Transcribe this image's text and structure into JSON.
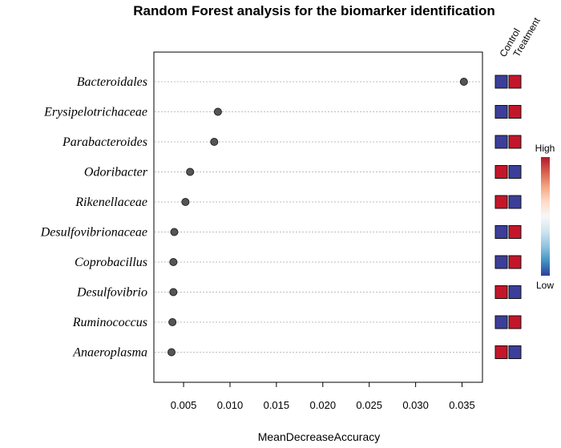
{
  "chart_data": {
    "type": "scatter",
    "title": "Random Forest analysis for the biomarker identification",
    "xlabel": "MeanDecreaseAccuracy",
    "ylabel": "",
    "xlim": [
      0.0018,
      0.0372
    ],
    "xticks": [
      "0.005",
      "0.010",
      "0.015",
      "0.020",
      "0.025",
      "0.030",
      "0.035"
    ],
    "xtick_values": [
      0.005,
      0.01,
      0.015,
      0.02,
      0.025,
      0.03,
      0.035
    ],
    "grid": "horizontal dotted",
    "categories": [
      "Bacteroidales",
      "Erysipelotrichaceae",
      "Parabacteroides",
      "Odoribacter",
      "Rikenellaceae",
      "Desulfovibrionaceae",
      "Coprobacillus",
      "Desulfovibrio",
      "Ruminococcus",
      "Anaeroplasma"
    ],
    "values": [
      0.0352,
      0.0087,
      0.0083,
      0.0057,
      0.0052,
      0.004,
      0.0039,
      0.0039,
      0.0038,
      0.0037
    ],
    "heatmap": {
      "columns": [
        "Control",
        "Treatment"
      ],
      "levels": [
        [
          "Low",
          "High"
        ],
        [
          "Low",
          "High"
        ],
        [
          "Low",
          "High"
        ],
        [
          "High",
          "Low"
        ],
        [
          "High",
          "Low"
        ],
        [
          "Low",
          "High"
        ],
        [
          "Low",
          "High"
        ],
        [
          "High",
          "Low"
        ],
        [
          "Low",
          "High"
        ],
        [
          "High",
          "Low"
        ]
      ],
      "high_color": "#c4162a",
      "low_color": "#3c3e99"
    },
    "colorbar": {
      "high_label": "High",
      "low_label": "Low",
      "colors": [
        "#b2182b",
        "#d6604d",
        "#f4a582",
        "#fddbc7",
        "#f7f7f7",
        "#d1e5f0",
        "#92c5de",
        "#4393c3",
        "#2d3e99"
      ]
    },
    "point_color": "#555555"
  }
}
